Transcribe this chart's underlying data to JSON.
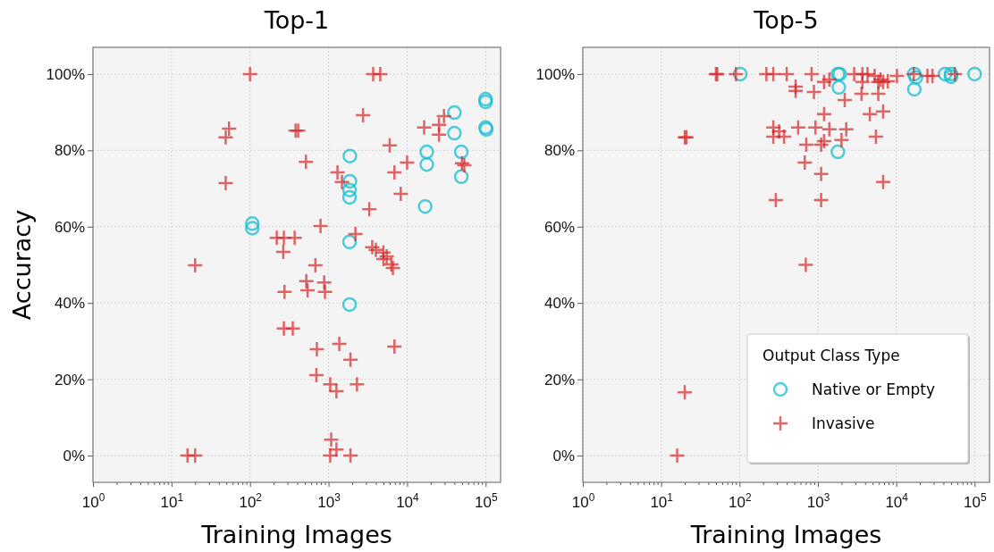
{
  "chart_data": [
    {
      "type": "scatter",
      "title": "Top-1",
      "xlabel": "Training Images",
      "ylabel": "Accuracy",
      "log": "x",
      "grid": true,
      "legend": false,
      "xlim": [
        1,
        155000
      ],
      "ylim": [
        -7,
        107
      ],
      "xticks": [
        {
          "value": 1,
          "label": "10$^{0}$"
        },
        {
          "value": 2,
          "label": null
        },
        {
          "value": 3,
          "label": null
        },
        {
          "value": 4,
          "label": null
        },
        {
          "value": 5,
          "label": null
        },
        {
          "value": 6,
          "label": null
        },
        {
          "value": 7,
          "label": null
        },
        {
          "value": 8,
          "label": null
        },
        {
          "value": 9,
          "label": null
        },
        {
          "value": 10,
          "label": "10$^{1}$"
        },
        {
          "value": 20,
          "label": null
        },
        {
          "value": 30,
          "label": null
        },
        {
          "value": 40,
          "label": null
        },
        {
          "value": 50,
          "label": null
        },
        {
          "value": 60,
          "label": null
        },
        {
          "value": 70,
          "label": null
        },
        {
          "value": 80,
          "label": null
        },
        {
          "value": 90,
          "label": null
        },
        {
          "value": 100,
          "label": "10$^{2}$"
        },
        {
          "value": 200,
          "label": null
        },
        {
          "value": 300,
          "label": null
        },
        {
          "value": 400,
          "label": null
        },
        {
          "value": 500,
          "label": null
        },
        {
          "value": 600,
          "label": null
        },
        {
          "value": 700,
          "label": null
        },
        {
          "value": 800,
          "label": null
        },
        {
          "value": 900,
          "label": null
        },
        {
          "value": 1000,
          "label": "10$^{3}$"
        },
        {
          "value": 2000,
          "label": null
        },
        {
          "value": 3000,
          "label": null
        },
        {
          "value": 4000,
          "label": null
        },
        {
          "value": 5000,
          "label": null
        },
        {
          "value": 6000,
          "label": null
        },
        {
          "value": 7000,
          "label": null
        },
        {
          "value": 8000,
          "label": null
        },
        {
          "value": 9000,
          "label": null
        },
        {
          "value": 10000,
          "label": "10$^{4}$"
        },
        {
          "value": 20000,
          "label": null
        },
        {
          "value": 30000,
          "label": null
        },
        {
          "value": 40000,
          "label": null
        },
        {
          "value": 50000,
          "label": null
        },
        {
          "value": 60000,
          "label": null
        },
        {
          "value": 70000,
          "label": null
        },
        {
          "value": 80000,
          "label": null
        },
        {
          "value": 90000,
          "label": null
        },
        {
          "value": 100000,
          "label": "10$^{5}$"
        }
      ],
      "yticks": [
        {
          "value": 0,
          "label": "0%"
        },
        {
          "value": 20,
          "label": "20%"
        },
        {
          "value": 40,
          "label": "40%"
        },
        {
          "value": 60,
          "label": "60%"
        },
        {
          "value": 80,
          "label": "80%"
        },
        {
          "value": 100,
          "label": "100%"
        }
      ],
      "series": [
        {
          "color": "#17becf",
          "marker": "circle",
          "x": [
            107,
            107,
            1870,
            1870,
            1850,
            1850,
            1850,
            1850,
            17800,
            17800,
            17000,
            40000,
            40000,
            49000,
            49000,
            100000,
            100000,
            100000,
            102000
          ],
          "values": [
            60.8,
            59.6,
            78.5,
            71.9,
            69.6,
            67.7,
            56,
            39.6,
            79.6,
            76.3,
            65.3,
            89.9,
            84.5,
            79.6,
            73.1,
            93.4,
            92.7,
            86,
            85.5
          ]
        },
        {
          "color": "#d62728",
          "marker": "cross",
          "x": [
            100,
            54,
            49,
            49,
            20,
            219,
            270,
            370,
            265,
            275,
            270,
            350,
            16,
            20,
            380,
            410,
            3700,
            4550,
            2750,
            515,
            1300,
            1480,
            6000,
            6900,
            10000,
            8300,
            3300,
            16500,
            25500,
            29500,
            25500,
            53500,
            50000,
            790,
            2200,
            3600,
            4000,
            5000,
            5500,
            5000,
            6300,
            6600,
            680,
            520,
            880,
            540,
            900,
            710,
            1370,
            1900,
            6900,
            700,
            1050,
            1260,
            2300,
            1080,
            1260,
            1050,
            1900
          ],
          "values": [
            100,
            85.7,
            83.4,
            71.4,
            49.9,
            57.1,
            57.1,
            57.1,
            53.4,
            42.9,
            33.3,
            33.3,
            0,
            0,
            85.2,
            85.2,
            100,
            100,
            89.2,
            77,
            74.2,
            71.7,
            81.3,
            74.2,
            76.8,
            68.6,
            64.6,
            86,
            86.7,
            89,
            84.1,
            76.1,
            76.6,
            60.2,
            58.1,
            54.6,
            53.9,
            53.2,
            52.2,
            51.5,
            50.1,
            49.2,
            49.9,
            45.7,
            45.4,
            43.3,
            42.9,
            27.9,
            29.3,
            25.1,
            28.6,
            21.1,
            18.7,
            16.9,
            18.7,
            4.2,
            1.6,
            0,
            0
          ]
        }
      ]
    },
    {
      "type": "scatter",
      "title": "Top-5",
      "xlabel": "Training Images",
      "log": "x",
      "grid": true,
      "legend": "bottom right",
      "legend_title": "Output Class Type",
      "xlim": [
        1,
        155000
      ],
      "ylim": [
        -7,
        107
      ],
      "xticks": [
        {
          "value": 1,
          "label": "10$^{0}$"
        },
        {
          "value": 2,
          "label": null
        },
        {
          "value": 3,
          "label": null
        },
        {
          "value": 4,
          "label": null
        },
        {
          "value": 5,
          "label": null
        },
        {
          "value": 6,
          "label": null
        },
        {
          "value": 7,
          "label": null
        },
        {
          "value": 8,
          "label": null
        },
        {
          "value": 9,
          "label": null
        },
        {
          "value": 10,
          "label": "10$^{1}$"
        },
        {
          "value": 20,
          "label": null
        },
        {
          "value": 30,
          "label": null
        },
        {
          "value": 40,
          "label": null
        },
        {
          "value": 50,
          "label": null
        },
        {
          "value": 60,
          "label": null
        },
        {
          "value": 70,
          "label": null
        },
        {
          "value": 80,
          "label": null
        },
        {
          "value": 90,
          "label": null
        },
        {
          "value": 100,
          "label": "10$^{2}$"
        },
        {
          "value": 200,
          "label": null
        },
        {
          "value": 300,
          "label": null
        },
        {
          "value": 400,
          "label": null
        },
        {
          "value": 500,
          "label": null
        },
        {
          "value": 600,
          "label": null
        },
        {
          "value": 700,
          "label": null
        },
        {
          "value": 800,
          "label": null
        },
        {
          "value": 900,
          "label": null
        },
        {
          "value": 1000,
          "label": "10$^{3}$"
        },
        {
          "value": 2000,
          "label": null
        },
        {
          "value": 3000,
          "label": null
        },
        {
          "value": 4000,
          "label": null
        },
        {
          "value": 5000,
          "label": null
        },
        {
          "value": 6000,
          "label": null
        },
        {
          "value": 7000,
          "label": null
        },
        {
          "value": 8000,
          "label": null
        },
        {
          "value": 9000,
          "label": null
        },
        {
          "value": 10000,
          "label": "10$^{4}$"
        },
        {
          "value": 20000,
          "label": null
        },
        {
          "value": 30000,
          "label": null
        },
        {
          "value": 40000,
          "label": null
        },
        {
          "value": 50000,
          "label": null
        },
        {
          "value": 60000,
          "label": null
        },
        {
          "value": 70000,
          "label": null
        },
        {
          "value": 80000,
          "label": null
        },
        {
          "value": 90000,
          "label": null
        },
        {
          "value": 100000,
          "label": "10$^{5}$"
        }
      ],
      "yticks": [
        {
          "value": 0,
          "label": "0%"
        },
        {
          "value": 20,
          "label": "20%"
        },
        {
          "value": 40,
          "label": "40%"
        },
        {
          "value": 60,
          "label": "60%"
        },
        {
          "value": 80,
          "label": "80%"
        },
        {
          "value": 100,
          "label": "100%"
        }
      ],
      "series": [
        {
          "name": "Native or Empty",
          "color": "#17becf",
          "marker": "circle",
          "x": [
            102,
            1800,
            1900,
            1850,
            1800,
            17000,
            17800,
            17000,
            42000,
            50000,
            50000,
            100000
          ],
          "values": [
            100,
            100,
            100,
            96.5,
            79.6,
            100,
            99.1,
            96,
            100,
            100,
            99.3,
            100
          ]
        },
        {
          "name": "Invasive",
          "color": "#d62728",
          "marker": "cross",
          "x": [
            50,
            52,
            90,
            220,
            270,
            400,
            830,
            2900,
            3700,
            4300,
            5300,
            6300,
            7800,
            10200,
            16700,
            25000,
            29000,
            56000,
            1200,
            1400,
            3700,
            5900,
            6800,
            520,
            520,
            890,
            3600,
            5900,
            2200,
            1200,
            4600,
            6800,
            270,
            320,
            560,
            930,
            1400,
            2300,
            270,
            370,
            5500,
            2000,
            1200,
            710,
            1100,
            680,
            1100,
            6800,
            290,
            1100,
            20,
            21,
            700,
            20,
            16
          ],
          "values": [
            100,
            100,
            100,
            100,
            100,
            100,
            100,
            100,
            100,
            100,
            99.5,
            98.6,
            98.1,
            99.5,
            100,
            99.5,
            99.5,
            100,
            97.9,
            98.6,
            97.9,
            97.9,
            97.9,
            96.7,
            95.6,
            95.3,
            94.8,
            94.8,
            93.2,
            89.5,
            89.5,
            90.2,
            86,
            85,
            86,
            86,
            85.5,
            85.5,
            83.6,
            83.6,
            83.6,
            82.7,
            82.4,
            81.5,
            81.5,
            76.8,
            73.8,
            71.7,
            67,
            67,
            83.4,
            83.4,
            50,
            16.6,
            0
          ]
        }
      ]
    }
  ]
}
